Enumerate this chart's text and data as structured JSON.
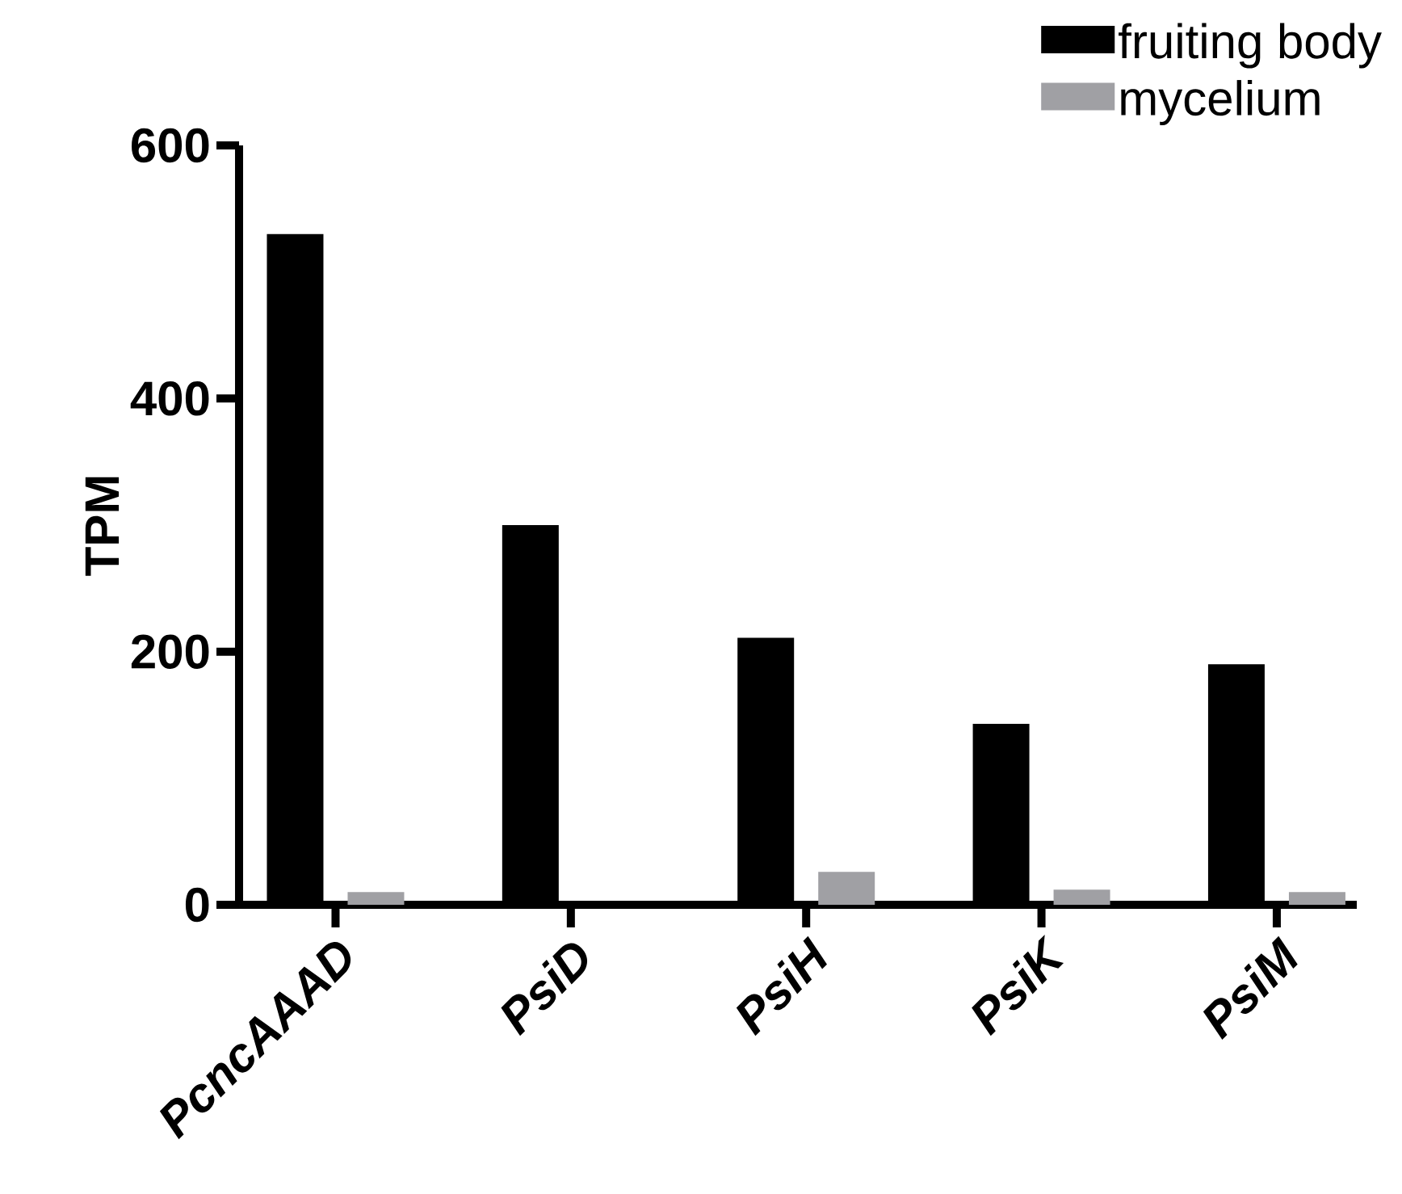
{
  "chart_data": {
    "type": "bar",
    "ylabel": "TPM",
    "categories": [
      "PcncAAAD",
      "PsiD",
      "PsiH",
      "PsiK",
      "PsiM"
    ],
    "series": [
      {
        "name": "fruiting body",
        "color": "#000000",
        "values": [
          530,
          300,
          211,
          143,
          190
        ]
      },
      {
        "name": "mycelium",
        "color": "#a0a0a4",
        "values": [
          10,
          0,
          26,
          12,
          10
        ]
      }
    ],
    "ylim": [
      0,
      600
    ],
    "yticks": [
      0,
      200,
      400,
      600
    ],
    "grid": false,
    "legend": "top right"
  }
}
